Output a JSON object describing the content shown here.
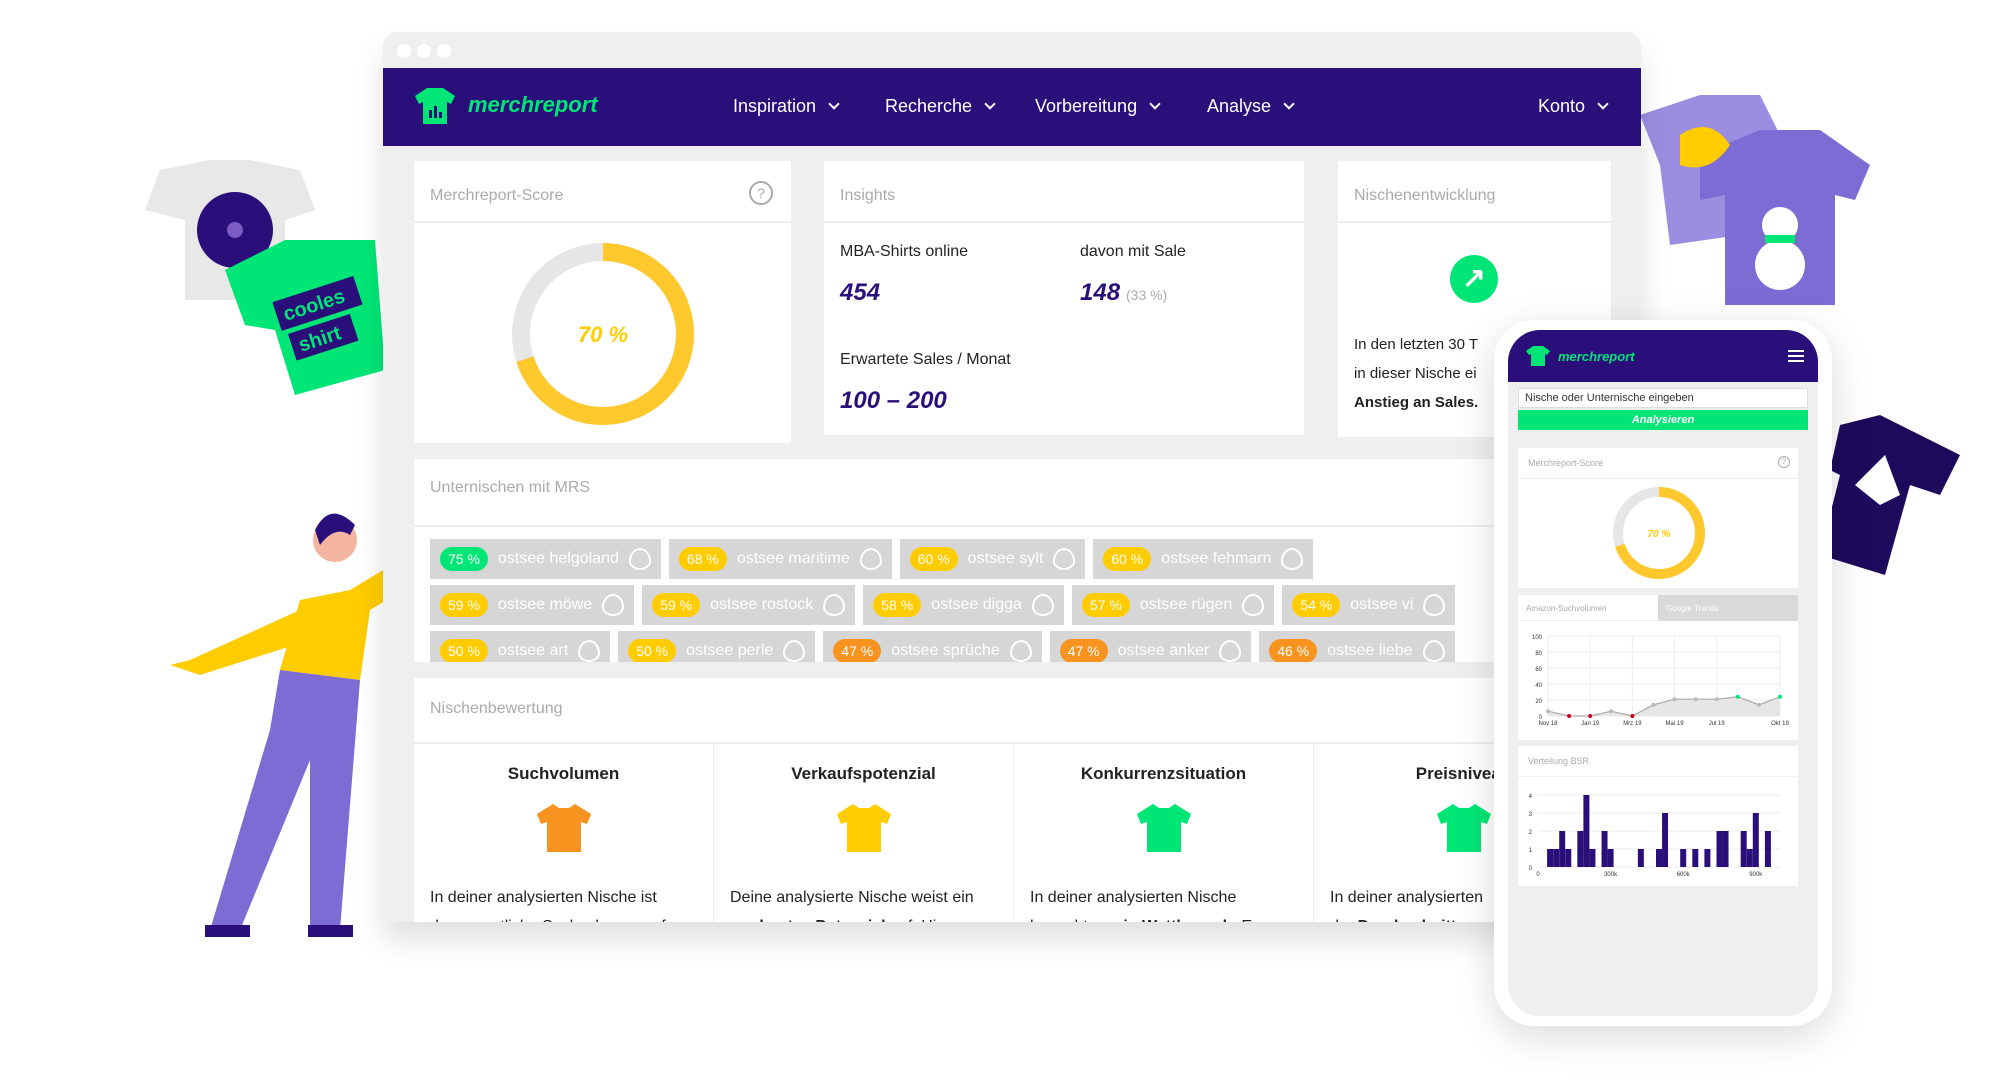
{
  "nav": {
    "brand": "merchreport",
    "items": [
      "Inspiration",
      "Recherche",
      "Vorbereitung",
      "Analyse"
    ],
    "account": "Konto"
  },
  "score": {
    "title": "Merchreport-Score",
    "value": 70,
    "label": "70 %"
  },
  "insights": {
    "title": "Insights",
    "shirts_label": "MBA-Shirts online",
    "shirts_value": "454",
    "sale_label": "davon mit Sale",
    "sale_value": "148",
    "sale_pct": "(33 %)",
    "sales_label": "Erwartete Sales / Monat",
    "sales_value": "100 – 200"
  },
  "trend": {
    "title": "Nischenentwicklung",
    "line1": "In den letzten 30 T",
    "line2": "in dieser Nische ei",
    "line3": "Anstieg an Sales."
  },
  "subniches": {
    "title": "Unternischen mit MRS",
    "chips": [
      [
        {
          "score": "75 %",
          "name": "ostsee helgoland",
          "color": "#00e676"
        },
        {
          "score": "68 %",
          "name": "ostsee maritime",
          "color": "#ffcc00"
        },
        {
          "score": "60 %",
          "name": "ostsee sylt",
          "color": "#ffcc00"
        },
        {
          "score": "60 %",
          "name": "ostsee fehmarn",
          "color": "#ffcc00"
        }
      ],
      [
        {
          "score": "59 %",
          "name": "ostsee möwe",
          "color": "#ffcc00"
        },
        {
          "score": "59 %",
          "name": "ostsee rostock",
          "color": "#ffcc00"
        },
        {
          "score": "58 %",
          "name": "ostsee digga",
          "color": "#ffcc00"
        },
        {
          "score": "57 %",
          "name": "ostsee rügen",
          "color": "#ffcc00"
        },
        {
          "score": "54 %",
          "name": "ostsee vi",
          "color": "#ffcc00"
        }
      ],
      [
        {
          "score": "50 %",
          "name": "ostsee art",
          "color": "#ffcc00"
        },
        {
          "score": "50 %",
          "name": "ostsee perle",
          "color": "#ffcc00"
        },
        {
          "score": "47 %",
          "name": "ostsee sprüche",
          "color": "#f7931e"
        },
        {
          "score": "47 %",
          "name": "ostsee anker",
          "color": "#f7931e"
        },
        {
          "score": "46 %",
          "name": "ostsee liebe",
          "color": "#f7931e"
        }
      ]
    ]
  },
  "rating": {
    "title": "Nischenbewertung",
    "cols": [
      {
        "head": "Suchvolumen",
        "color": "#f7931e",
        "l1": "In deiner analysierten Nische ist",
        "l2a": "das monatliche Suchvolumen auf",
        "l2b": "",
        "l2c": ""
      },
      {
        "head": "Verkaufspotenzial",
        "color": "#ffcc00",
        "l1": "Deine analysierte Nische weist ein",
        "l2a": "",
        "l2b": "moderates Potenzial",
        "l2c": " auf. Hier"
      },
      {
        "head": "Konkurrenzsituation",
        "color": "#00e676",
        "l1": "In deiner analysierten Nische",
        "l2a": "herrscht ",
        "l2b": "wenig Wettbewerb",
        "l2c": ". Es"
      },
      {
        "head": "Preisniveau",
        "color": "#00e676",
        "l1": "In deiner analysierten",
        "l2a": "der ",
        "l2b": "Durchschnittspre",
        "l2c": ""
      }
    ]
  },
  "phone": {
    "brand": "merchreport",
    "search_placeholder": "Nische oder Unternische eingeben",
    "analyze": "Analysieren",
    "score_title": "Merchreport-Score",
    "score_label": "70 %",
    "tab1": "Amazon-Suchvolumen",
    "tab2": "Google Trends",
    "bsr_title": "Verteilung BSR"
  },
  "illustration": {
    "shirt_text1": "cooles",
    "shirt_text2": "shirt"
  },
  "chart_data": [
    {
      "type": "line",
      "title": "Amazon-Suchvolumen",
      "ylim": [
        0,
        100
      ],
      "yticks": [
        0,
        20,
        40,
        60,
        80,
        100
      ],
      "xlabels": [
        "Nov 18",
        "Jan 19",
        "Mrz 19",
        "Mai 19",
        "Jul 19",
        "Okt 19"
      ],
      "values": [
        6,
        0,
        0,
        6,
        0,
        14,
        21,
        21,
        21,
        24,
        14,
        24
      ],
      "point_colors": [
        "#bbb",
        "#d0021b",
        "#d0021b",
        "#bbb",
        "#d0021b",
        "#bbb",
        "#bbb",
        "#bbb",
        "#bbb",
        "#00e676",
        "#bbb",
        "#00e676"
      ]
    },
    {
      "type": "bar",
      "title": "Verteilung BSR",
      "ylim": [
        0,
        4
      ],
      "yticks": [
        0,
        1,
        2,
        3,
        4
      ],
      "xticks": [
        "0",
        "300k",
        "600k",
        "900k"
      ],
      "xlim": [
        0,
        1000
      ],
      "x": [
        50,
        75,
        100,
        125,
        175,
        200,
        225,
        275,
        300,
        425,
        500,
        525,
        600,
        650,
        700,
        750,
        775,
        850,
        875,
        900,
        950
      ],
      "values": [
        1,
        1,
        2,
        1,
        2,
        4,
        1,
        2,
        1,
        1,
        1,
        3,
        1,
        1,
        1,
        2,
        2,
        2,
        1,
        3,
        2
      ]
    }
  ]
}
